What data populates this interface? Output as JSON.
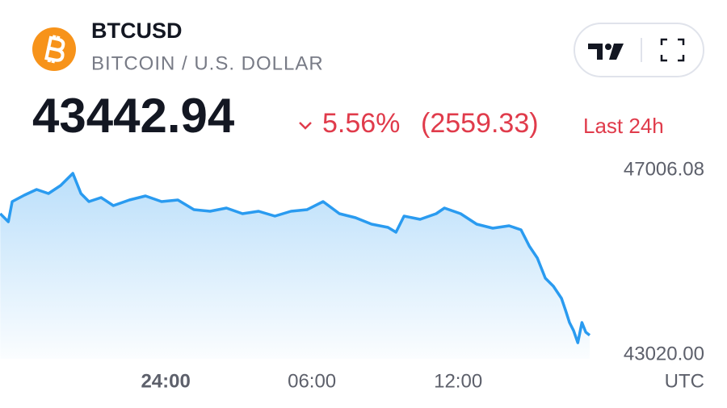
{
  "header": {
    "symbol": "BTCUSD",
    "name": "BITCOIN / U.S. DOLLAR",
    "price": "43442.94",
    "change_percent": "5.56%",
    "change_value": "(2559.33)",
    "period": "Last 24h"
  },
  "chart_data": {
    "type": "area",
    "color": "#2a9bf0",
    "x_label": "UTC",
    "x": [
      -6.79,
      -6.46,
      -6.3,
      -5.8,
      -5.3,
      -4.81,
      -4.31,
      -3.81,
      -3.48,
      -3.15,
      -2.65,
      -2.15,
      -1.49,
      -0.83,
      -0.17,
      0.5,
      1.16,
      1.82,
      2.49,
      3.15,
      3.81,
      4.48,
      5.14,
      5.8,
      6.46,
      7.13,
      7.79,
      8.45,
      9.12,
      9.45,
      9.78,
      10.44,
      11.1,
      11.44,
      12.1,
      12.76,
      13.42,
      14.09,
      14.58,
      14.92,
      15.25,
      15.58,
      15.91,
      16.24,
      16.41,
      16.57,
      16.74,
      16.91,
      17.08,
      17.24,
      17.4
    ],
    "values": [
      46066,
      45892,
      46327,
      46466,
      46588,
      46501,
      46675,
      46936,
      46501,
      46327,
      46414,
      46240,
      46362,
      46449,
      46327,
      46362,
      46153,
      46118,
      46188,
      46066,
      46118,
      46014,
      46118,
      46153,
      46327,
      46066,
      45979,
      45840,
      45770,
      45665,
      46014,
      45944,
      46066,
      46188,
      46066,
      45840,
      45752,
      45805,
      45718,
      45369,
      45108,
      44673,
      44499,
      44238,
      43977,
      43716,
      43541,
      43280,
      43716,
      43507,
      43442.94
    ],
    "xlim": [
      -6.8,
      17.73
    ],
    "xticks": [
      {
        "value": 0,
        "label": "24:00"
      },
      {
        "value": 6,
        "label": "06:00"
      },
      {
        "value": 12,
        "label": "12:00"
      }
    ],
    "ylim": [
      43020,
      47006.08
    ],
    "yticks": [
      {
        "value": 43020,
        "label": "43020.00"
      },
      47006.08
    ],
    "grid": false
  }
}
